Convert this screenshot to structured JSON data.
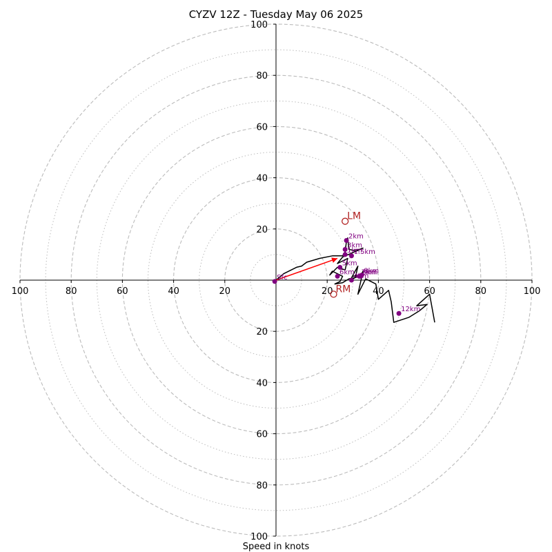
{
  "chart_data": {
    "type": "hodograph",
    "title": "CYZV 12Z - Tuesday May 06 2025",
    "xlabel": "Speed in knots",
    "unit": "knots",
    "rlim": [
      0,
      100
    ],
    "ticks_x": [
      "100",
      "80",
      "60",
      "40",
      "20",
      "20",
      "40",
      "60",
      "80",
      "100"
    ],
    "ticks_y": [
      "100",
      "80",
      "60",
      "40",
      "20",
      "20",
      "40",
      "60",
      "80",
      "100"
    ],
    "ring_major": [
      20,
      40,
      60,
      80,
      100
    ],
    "ring_minor": [
      10,
      30,
      50,
      70,
      90
    ],
    "hodograph_u_v": [
      [
        0,
        0
      ],
      [
        3,
        2.5
      ],
      [
        8,
        5
      ],
      [
        10,
        5.5
      ],
      [
        12,
        7
      ],
      [
        17,
        8.5
      ],
      [
        22,
        9.5
      ],
      [
        26,
        9.5
      ],
      [
        27,
        11
      ],
      [
        27.5,
        15
      ],
      [
        28,
        16.5
      ],
      [
        28.5,
        12
      ],
      [
        31,
        11.5
      ],
      [
        34,
        12.5
      ],
      [
        26,
        9
      ],
      [
        24,
        6.5
      ],
      [
        28,
        8.5
      ],
      [
        27,
        4
      ],
      [
        24,
        5
      ],
      [
        21,
        2
      ],
      [
        22,
        3.5
      ],
      [
        26,
        1.5
      ],
      [
        25,
        -0.5
      ],
      [
        23,
        -1.5
      ],
      [
        26,
        -1
      ],
      [
        28.5,
        0.5
      ],
      [
        31,
        1
      ],
      [
        32,
        5.5
      ],
      [
        29,
        0
      ],
      [
        33,
        2
      ],
      [
        30,
        1.5
      ],
      [
        33,
        1.5
      ],
      [
        34,
        3.5
      ],
      [
        32,
        -5.5
      ],
      [
        35,
        0.5
      ],
      [
        39,
        -1.5
      ],
      [
        40,
        -7.5
      ],
      [
        44,
        -4
      ],
      [
        45,
        -8.5
      ],
      [
        46,
        -16.5
      ],
      [
        52,
        -14.5
      ],
      [
        56,
        -12
      ],
      [
        59,
        -9.5
      ],
      [
        55,
        -10
      ],
      [
        60,
        -5.5
      ],
      [
        62,
        -16.5
      ]
    ],
    "height_markers": [
      {
        "label": "Sfc",
        "u": -0.5,
        "v": -0.5
      },
      {
        "label": "2km",
        "u": 27.5,
        "v": 15.5
      },
      {
        "label": "3km",
        "u": 27,
        "v": 12
      },
      {
        "label": "1km",
        "u": 27,
        "v": 10
      },
      {
        "label": "1.5km",
        "u": 29.5,
        "v": 9.5
      },
      {
        "label": "5km",
        "u": 25,
        "v": 5
      },
      {
        "label": "6km",
        "u": 24,
        "v": 1.5
      },
      {
        "label": "4km",
        "u": 29.5,
        "v": 0
      },
      {
        "label": "8km",
        "u": 33.5,
        "v": 2
      },
      {
        "label": "9km",
        "u": 33,
        "v": 1.5
      },
      {
        "label": "7km",
        "u": 32.5,
        "v": 1.5
      },
      {
        "label": "12km",
        "u": 48,
        "v": -13
      }
    ],
    "storm_motion": [
      {
        "label": "LM",
        "u": 27,
        "v": 23
      },
      {
        "label": "RM",
        "u": 22.5,
        "v": -5.5
      }
    ],
    "mean_wind_arrow": {
      "from": [
        0,
        0
      ],
      "to": [
        24,
        8.5
      ]
    },
    "colors": {
      "trace": "#000000",
      "height_marker": "#800080",
      "storm_motion": "#b22222",
      "arrow": "#ff0000",
      "rings": "#bbbbbb",
      "axes": "#000000"
    }
  }
}
